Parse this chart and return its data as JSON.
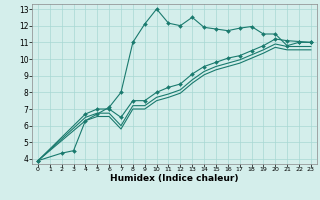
{
  "xlabel": "Humidex (Indice chaleur)",
  "background_color": "#d4eeeb",
  "line_color": "#1a7a6e",
  "grid_color": "#a8d8d4",
  "xlim": [
    -0.5,
    23.5
  ],
  "ylim": [
    3.7,
    13.3
  ],
  "xticks": [
    0,
    1,
    2,
    3,
    4,
    5,
    6,
    7,
    8,
    9,
    10,
    11,
    12,
    13,
    14,
    15,
    16,
    17,
    18,
    19,
    20,
    21,
    22,
    23
  ],
  "yticks": [
    4,
    5,
    6,
    7,
    8,
    9,
    10,
    11,
    12,
    13
  ],
  "series": [
    {
      "x": [
        0,
        2,
        3,
        4,
        5,
        6,
        7,
        8,
        9,
        10,
        11,
        12,
        13,
        14,
        15,
        16,
        17,
        18,
        19,
        20,
        21,
        22,
        23
      ],
      "y": [
        3.9,
        4.35,
        4.5,
        6.3,
        6.7,
        7.1,
        8.0,
        11.0,
        12.1,
        13.0,
        12.15,
        12.0,
        12.5,
        11.9,
        11.8,
        11.7,
        11.85,
        11.95,
        11.5,
        11.5,
        10.8,
        11.0,
        11.0
      ],
      "marker": "D",
      "markersize": 2.0,
      "linewidth": 0.8
    },
    {
      "x": [
        0,
        4,
        5,
        6,
        7,
        8,
        9,
        10,
        11,
        12,
        13,
        14,
        15,
        16,
        17,
        18,
        19,
        20,
        21,
        22,
        23
      ],
      "y": [
        3.9,
        6.7,
        7.0,
        7.0,
        6.5,
        7.5,
        7.5,
        8.0,
        8.3,
        8.5,
        9.1,
        9.55,
        9.8,
        10.05,
        10.2,
        10.5,
        10.8,
        11.2,
        11.1,
        11.05,
        11.0
      ],
      "marker": "D",
      "markersize": 2.0,
      "linewidth": 0.8
    },
    {
      "x": [
        0,
        4,
        5,
        6,
        7,
        8,
        9,
        10,
        11,
        12,
        13,
        14,
        15,
        16,
        17,
        18,
        19,
        20,
        21,
        22,
        23
      ],
      "y": [
        3.9,
        6.5,
        6.75,
        6.75,
        6.0,
        7.2,
        7.2,
        7.7,
        7.9,
        8.15,
        8.75,
        9.25,
        9.55,
        9.75,
        9.95,
        10.25,
        10.55,
        10.9,
        10.75,
        10.75,
        10.75
      ],
      "marker": null,
      "markersize": 0,
      "linewidth": 0.8
    },
    {
      "x": [
        0,
        4,
        5,
        6,
        7,
        8,
        9,
        10,
        11,
        12,
        13,
        14,
        15,
        16,
        17,
        18,
        19,
        20,
        21,
        22,
        23
      ],
      "y": [
        3.9,
        6.3,
        6.55,
        6.55,
        5.8,
        7.0,
        7.0,
        7.5,
        7.7,
        7.95,
        8.55,
        9.05,
        9.35,
        9.55,
        9.75,
        10.05,
        10.35,
        10.7,
        10.55,
        10.55,
        10.55
      ],
      "marker": null,
      "markersize": 0,
      "linewidth": 0.8
    }
  ]
}
